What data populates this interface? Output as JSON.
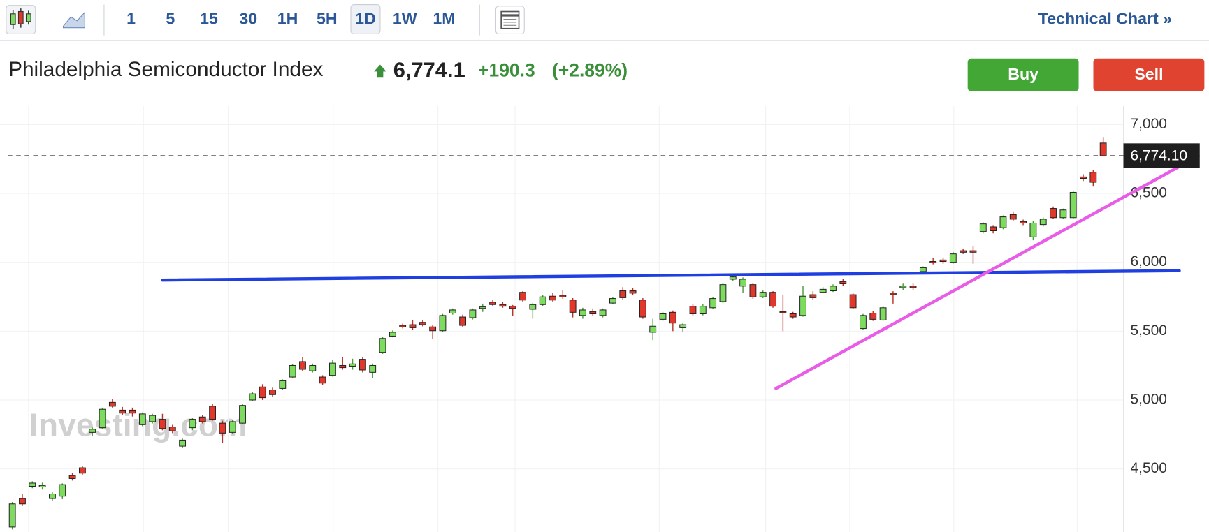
{
  "toolbar": {
    "intervals": [
      "1",
      "5",
      "15",
      "30",
      "1H",
      "5H",
      "1D",
      "1W",
      "1M"
    ],
    "active": 6,
    "link": "Technical Chart »"
  },
  "header": {
    "title": "Philadelphia Semiconductor Index",
    "price": "6,774.1",
    "change": "+190.3",
    "change_percent": "(+2.89%)",
    "buy": "Buy",
    "sell": "Sell"
  },
  "watermark": "Investing.com",
  "chart_data": {
    "type": "candlestick",
    "up_color": "#7ddc5f",
    "down_color": "#e2372b",
    "open": [
      4078,
      4285,
      4374,
      4369,
      4285,
      4302,
      4452,
      4508,
      4765,
      4799,
      4983,
      4927,
      4927,
      4821,
      4843,
      4860,
      4804,
      4665,
      4799,
      4877,
      4955,
      4832,
      4765,
      4832,
      5000,
      5095,
      5073,
      5084,
      5167,
      5279,
      5212,
      5167,
      5179,
      5251,
      5246,
      5296,
      5201,
      5346,
      5464,
      5542,
      5547,
      5564,
      5531,
      5503,
      5631,
      5603,
      5598,
      5665,
      5710,
      5693,
      5681,
      5782,
      5659,
      5693,
      5754,
      5760,
      5726,
      5614,
      5642,
      5614,
      5704,
      5793,
      5793,
      5726,
      5492,
      5586,
      5637,
      5525,
      5681,
      5626,
      5670,
      5715,
      5877,
      5827,
      5838,
      5749,
      5782,
      5642,
      5626,
      5614,
      5765,
      5782,
      5793,
      5860,
      5765,
      5519,
      5631,
      5581,
      5776,
      5816,
      5827,
      5933,
      6006,
      6017,
      6000,
      6084,
      6084,
      6223,
      6257,
      6251,
      6346,
      6296,
      6184,
      6274,
      6391,
      6324,
      6324,
      6620,
      6654,
      6866
    ],
    "high": [
      4260,
      4320,
      4410,
      4400,
      4330,
      4395,
      4470,
      4520,
      4800,
      4945,
      5005,
      4950,
      4945,
      4910,
      4900,
      4900,
      4820,
      4720,
      4870,
      4890,
      4970,
      4850,
      4855,
      4970,
      5060,
      5115,
      5090,
      5150,
      5260,
      5310,
      5265,
      5180,
      5290,
      5310,
      5300,
      5310,
      5265,
      5460,
      5505,
      5555,
      5580,
      5580,
      5545,
      5625,
      5665,
      5620,
      5665,
      5700,
      5730,
      5710,
      5690,
      5790,
      5705,
      5760,
      5780,
      5800,
      5740,
      5670,
      5665,
      5665,
      5750,
      5820,
      5815,
      5740,
      5590,
      5640,
      5650,
      5560,
      5695,
      5695,
      5750,
      5850,
      5910,
      5890,
      5850,
      5795,
      5790,
      5765,
      5640,
      5830,
      5790,
      5820,
      5840,
      5880,
      5780,
      5625,
      5645,
      5680,
      5790,
      5845,
      5845,
      5970,
      6030,
      6035,
      6075,
      6100,
      6118,
      6290,
      6270,
      6340,
      6370,
      6310,
      6300,
      6325,
      6405,
      6390,
      6515,
      6640,
      6670,
      6910
    ],
    "low": [
      4060,
      4230,
      4360,
      4350,
      4270,
      4280,
      4415,
      4455,
      4740,
      4790,
      4945,
      4890,
      4880,
      4810,
      4830,
      4780,
      4760,
      4655,
      4780,
      4830,
      4850,
      4690,
      4755,
      4825,
      4990,
      5000,
      5025,
      5075,
      5160,
      5210,
      5200,
      5110,
      5170,
      5220,
      5220,
      5200,
      5160,
      5335,
      5455,
      5520,
      5510,
      5535,
      5445,
      5495,
      5620,
      5530,
      5585,
      5640,
      5680,
      5670,
      5610,
      5715,
      5590,
      5680,
      5715,
      5735,
      5600,
      5590,
      5610,
      5600,
      5695,
      5730,
      5760,
      5590,
      5435,
      5575,
      5500,
      5495,
      5610,
      5615,
      5660,
      5705,
      5865,
      5780,
      5735,
      5740,
      5670,
      5500,
      5590,
      5605,
      5730,
      5775,
      5785,
      5830,
      5660,
      5510,
      5575,
      5575,
      5700,
      5800,
      5800,
      5925,
      5985,
      5990,
      5990,
      6060,
      5990,
      6210,
      6210,
      6240,
      6300,
      6270,
      6160,
      6260,
      6315,
      6315,
      6315,
      6590,
      6550,
      6770
    ],
    "close": [
      4246,
      4246,
      4397,
      4380,
      4318,
      4386,
      4430,
      4469,
      4788,
      4933,
      4955,
      4905,
      4905,
      4899,
      4888,
      4793,
      4776,
      4709,
      4860,
      4843,
      4860,
      4760,
      4843,
      4961,
      5045,
      5017,
      5039,
      5140,
      5251,
      5223,
      5251,
      5123,
      5268,
      5235,
      5262,
      5218,
      5251,
      5447,
      5492,
      5531,
      5525,
      5547,
      5503,
      5614,
      5654,
      5542,
      5654,
      5676,
      5693,
      5681,
      5665,
      5726,
      5693,
      5749,
      5726,
      5749,
      5637,
      5654,
      5626,
      5654,
      5737,
      5743,
      5776,
      5603,
      5536,
      5626,
      5559,
      5547,
      5626,
      5681,
      5737,
      5838,
      5894,
      5877,
      5749,
      5782,
      5681,
      5637,
      5603,
      5754,
      5743,
      5804,
      5827,
      5844,
      5670,
      5614,
      5586,
      5670,
      5765,
      5827,
      5816,
      5961,
      6000,
      6006,
      6061,
      6073,
      6073,
      6279,
      6229,
      6330,
      6313,
      6285,
      6285,
      6313,
      6324,
      6380,
      6508,
      6609,
      6581,
      6774.1
    ],
    "last_price": 6774.1,
    "last_price_label": "6,774.10",
    "trend_lines": [
      {
        "color": "#1f3fe0",
        "start": {
          "index": 15,
          "value": 5871
        },
        "end": {
          "index": 116.6,
          "value": 5939
        }
      },
      {
        "color": "#e85ce8",
        "start": {
          "index": 76.3,
          "value": 5084
        },
        "end": {
          "index": 118.5,
          "value": 6771
        }
      }
    ],
    "ylim": [
      4042,
      7134
    ],
    "yticks": [
      {
        "value": 4500,
        "label": "4,500"
      },
      {
        "value": 5000,
        "label": "5,000"
      },
      {
        "value": 5500,
        "label": "5,500"
      },
      {
        "value": 6000,
        "label": "6,000"
      },
      {
        "value": 6500,
        "label": "6,500"
      },
      {
        "value": 7000,
        "label": "7,000"
      }
    ],
    "grid": true
  }
}
